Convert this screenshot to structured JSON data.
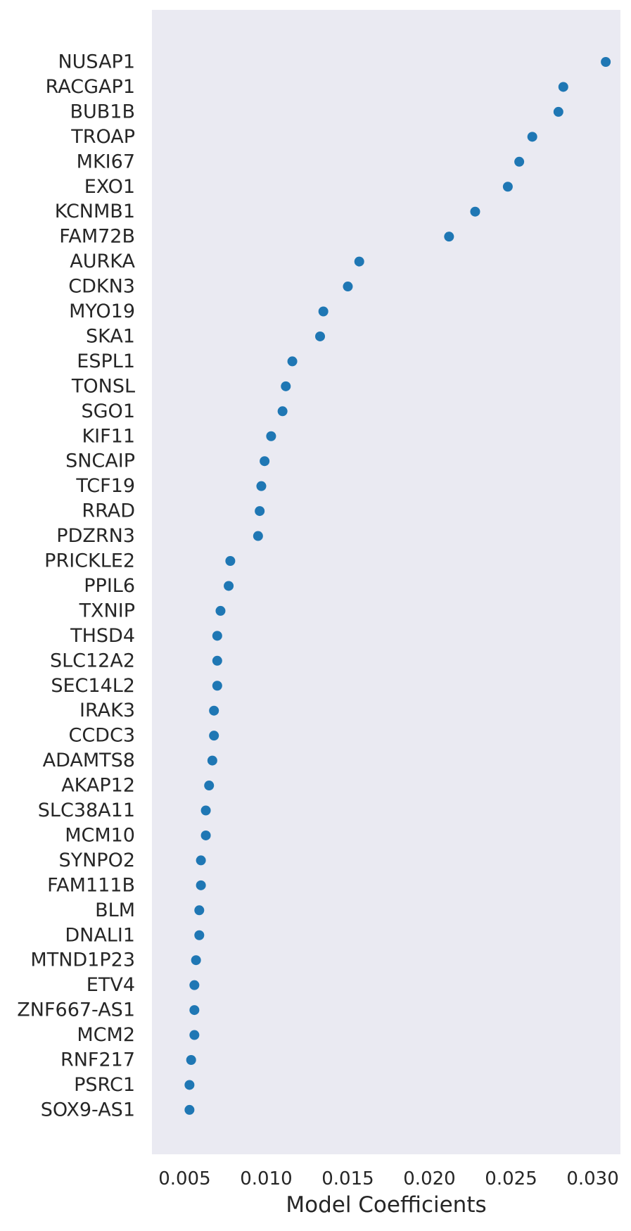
{
  "chart_data": {
    "type": "scatter",
    "title": "",
    "xlabel": "Model Coefficients",
    "ylabel": "",
    "xlim": [
      0.003,
      0.0317
    ],
    "xticks": [
      "0.005",
      "0.010",
      "0.015",
      "0.020",
      "0.025",
      "0.030"
    ],
    "xtick_values": [
      0.005,
      0.01,
      0.015,
      0.02,
      0.025,
      0.03
    ],
    "grid": false,
    "background": "#eaeaf2",
    "marker_color": "#1f77b4",
    "points": [
      {
        "label": "NUSAP1",
        "value": 0.0308
      },
      {
        "label": "RACGAP1",
        "value": 0.0282
      },
      {
        "label": "BUB1B",
        "value": 0.0279
      },
      {
        "label": "TROAP",
        "value": 0.0263
      },
      {
        "label": "MKI67",
        "value": 0.0255
      },
      {
        "label": "EXO1",
        "value": 0.0248
      },
      {
        "label": "KCNMB1",
        "value": 0.0228
      },
      {
        "label": "FAM72B",
        "value": 0.0212
      },
      {
        "label": "AURKA",
        "value": 0.0157
      },
      {
        "label": "CDKN3",
        "value": 0.015
      },
      {
        "label": "MYO19",
        "value": 0.0135
      },
      {
        "label": "SKA1",
        "value": 0.0133
      },
      {
        "label": "ESPL1",
        "value": 0.0116
      },
      {
        "label": "TONSL",
        "value": 0.0112
      },
      {
        "label": "SGO1",
        "value": 0.011
      },
      {
        "label": "KIF11",
        "value": 0.0103
      },
      {
        "label": "SNCAIP",
        "value": 0.0099
      },
      {
        "label": "TCF19",
        "value": 0.0097
      },
      {
        "label": "RRAD",
        "value": 0.0096
      },
      {
        "label": "PDZRN3",
        "value": 0.0095
      },
      {
        "label": "PRICKLE2",
        "value": 0.0078
      },
      {
        "label": "PPIL6",
        "value": 0.0077
      },
      {
        "label": "TXNIP",
        "value": 0.0072
      },
      {
        "label": "THSD4",
        "value": 0.007
      },
      {
        "label": "SLC12A2",
        "value": 0.007
      },
      {
        "label": "SEC14L2",
        "value": 0.007
      },
      {
        "label": "IRAK3",
        "value": 0.0068
      },
      {
        "label": "CCDC3",
        "value": 0.0068
      },
      {
        "label": "ADAMTS8",
        "value": 0.0067
      },
      {
        "label": "AKAP12",
        "value": 0.0065
      },
      {
        "label": "SLC38A11",
        "value": 0.0063
      },
      {
        "label": "MCM10",
        "value": 0.0063
      },
      {
        "label": "SYNPO2",
        "value": 0.006
      },
      {
        "label": "FAM111B",
        "value": 0.006
      },
      {
        "label": "BLM",
        "value": 0.0059
      },
      {
        "label": "DNALI1",
        "value": 0.0059
      },
      {
        "label": "MTND1P23",
        "value": 0.0057
      },
      {
        "label": "ETV4",
        "value": 0.0056
      },
      {
        "label": "ZNF667-AS1",
        "value": 0.0056
      },
      {
        "label": "MCM2",
        "value": 0.0056
      },
      {
        "label": "RNF217",
        "value": 0.0054
      },
      {
        "label": "PSRC1",
        "value": 0.0053
      },
      {
        "label": "SOX9-AS1",
        "value": 0.0053
      }
    ]
  }
}
